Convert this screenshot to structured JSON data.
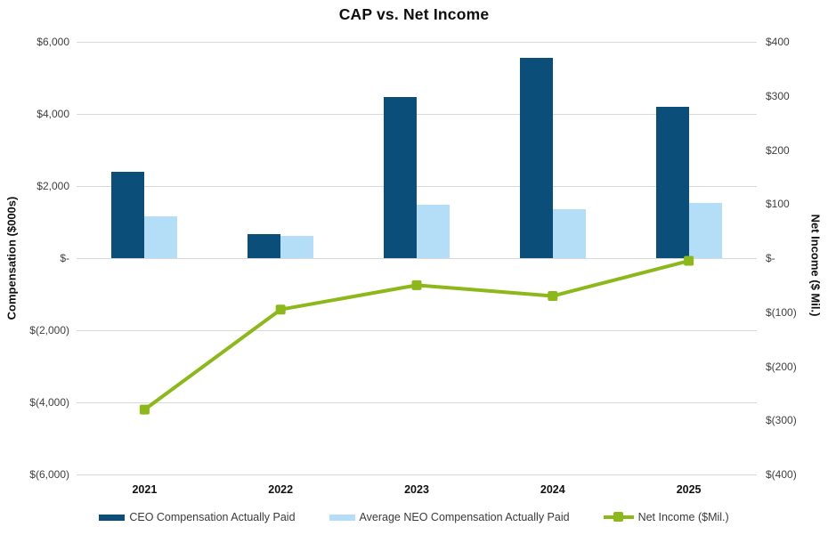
{
  "title": "CAP vs. Net Income",
  "colors": {
    "ceo_bar": "#0B4E79",
    "neo_bar": "#B4DEF8",
    "net_income_line": "#8CB819",
    "gridline": "#D9D9D9",
    "tick_text": "#3F3F3F",
    "title_text": "#0D0D0D"
  },
  "chart_data": {
    "type": "combo_bar_line",
    "categories": [
      "2021",
      "2022",
      "2023",
      "2024",
      "2025"
    ],
    "series": [
      {
        "name": "CEO Compensation Actually Paid",
        "type": "bar",
        "axis": "left",
        "color": "#0B4E79",
        "values": [
          2400,
          670,
          4480,
          5550,
          4200
        ]
      },
      {
        "name": "Average NEO Compensation Actually Paid",
        "type": "bar",
        "axis": "left",
        "color": "#B4DEF8",
        "values": [
          1150,
          610,
          1490,
          1360,
          1520
        ]
      },
      {
        "name": "Net Income ($Mil.)",
        "type": "line",
        "axis": "right",
        "color": "#8CB819",
        "values": [
          -280,
          -95,
          -50,
          -70,
          -5
        ]
      }
    ],
    "left_axis": {
      "title": "Compensation ($000s)",
      "min": -6000,
      "max": 6000,
      "step": 2000,
      "ticks": [
        "$6,000",
        "$4,000",
        "$2,000",
        "$-",
        "$(2,000)",
        "$(4,000)",
        "$(6,000)"
      ]
    },
    "right_axis": {
      "title": "Net Income ($ Mil.)",
      "min": -400,
      "max": 400,
      "step": 100,
      "ticks": [
        "$400",
        "$300",
        "$200",
        "$100",
        "$-",
        "$(100)",
        "$(200)",
        "$(300)",
        "$(400)"
      ]
    },
    "grid": true,
    "legend_position": "bottom"
  }
}
